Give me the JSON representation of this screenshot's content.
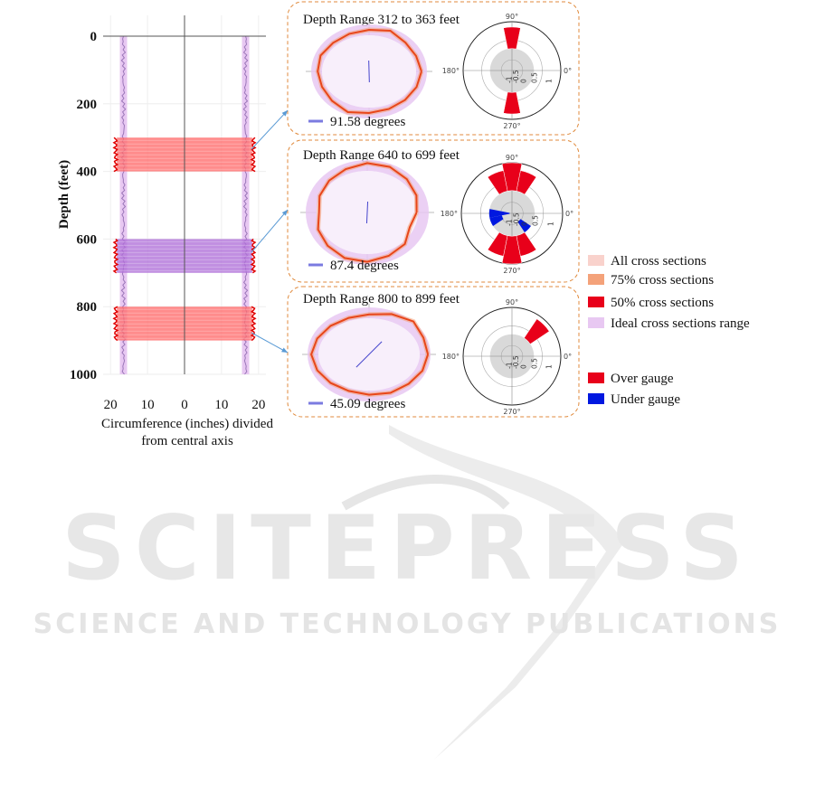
{
  "chart_data": [
    {
      "type": "line",
      "name": "caliper-log",
      "xlabel": "Circumference (inches) divided from central axis",
      "ylabel": "Depth (feet)",
      "xlim": [
        -22,
        22
      ],
      "ylim": [
        0,
        1000
      ],
      "x_ticks": [
        -20,
        -10,
        0,
        10,
        20
      ],
      "x_tick_labels": [
        "20",
        "10",
        "0",
        "10",
        "20"
      ],
      "y_ticks": [
        0,
        200,
        400,
        600,
        800,
        1000
      ],
      "y_tick_labels": [
        "0",
        "200",
        "400",
        "600",
        "800",
        "1000"
      ],
      "grid": true,
      "ideal_radius": 16.5,
      "highlighted_ranges": [
        {
          "start": 300,
          "end": 400,
          "color": "#ff6b6b"
        },
        {
          "start": 600,
          "end": 700,
          "color": "#b06fd8"
        },
        {
          "start": 800,
          "end": 900,
          "color": "#ff6b6b"
        }
      ]
    },
    {
      "type": "polar",
      "title": "Depth Range 312 to 363 feet",
      "angle_label": "91.58 degrees",
      "angle_deg": 91.58,
      "shape_radii": [
        1.0,
        0.97,
        0.98,
        1.06,
        1.0,
        0.98,
        0.97,
        1.0,
        0.98,
        0.97,
        1.0,
        1.06,
        1.0,
        0.98,
        0.97,
        0.98
      ],
      "rose_over": [
        0,
        0,
        0,
        0,
        0.8,
        0,
        0,
        0,
        0,
        0,
        0,
        0,
        0.8,
        0,
        0,
        0
      ],
      "rose_under": [
        0,
        0,
        0,
        0,
        0,
        0,
        0,
        0,
        0,
        0,
        0,
        0,
        0,
        0,
        0,
        0
      ]
    },
    {
      "type": "polar",
      "title": "Depth Range 640 to 699 feet",
      "angle_label": "87.4 degrees",
      "angle_deg": 87.4,
      "shape_radii": [
        0.88,
        0.95,
        1.0,
        1.05,
        1.05,
        1.0,
        0.96,
        0.92,
        0.86,
        0.95,
        1.0,
        1.05,
        1.05,
        1.0,
        0.95,
        0.82
      ],
      "rose_over": [
        0,
        0,
        0,
        0.75,
        1.0,
        0.75,
        0,
        0,
        0,
        0,
        0,
        0.75,
        1.0,
        0.75,
        0,
        0
      ],
      "rose_under": [
        0,
        0,
        0,
        0,
        0,
        0,
        0,
        0,
        0.9,
        0.55,
        0,
        0,
        0,
        0,
        0.55,
        0
      ]
    },
    {
      "type": "polar",
      "title": "Depth Range 800 to 899 feet",
      "angle_label": "45.09 degrees",
      "angle_deg": 45.09,
      "shape_radii": [
        1.05,
        1.05,
        1.12,
        1.05,
        0.96,
        0.95,
        0.97,
        1.0,
        1.03,
        1.0,
        0.97,
        0.95,
        0.97,
        1.0,
        1.0,
        1.03
      ],
      "rose_over": [
        0,
        0,
        0.85,
        0,
        0,
        0,
        0,
        0,
        0,
        0,
        0,
        0,
        0,
        0,
        0,
        0
      ],
      "rose_under": [
        0,
        0,
        0,
        0,
        0,
        0,
        0,
        0,
        0,
        0,
        0,
        0,
        0,
        0,
        0,
        0
      ]
    }
  ],
  "polar_axis": {
    "labels": {
      "top": "90°",
      "left": "180°",
      "right": "0°",
      "bottom": "270°"
    },
    "radial_labels": [
      "-1",
      "-0.5",
      "0",
      "0.5",
      "1"
    ]
  },
  "legend": [
    {
      "label": "All cross sections",
      "color": "#f9d2cc"
    },
    {
      "label": "75% cross sections",
      "color": "#f4a27a"
    },
    {
      "label": "50% cross sections",
      "color": "#e8001a"
    },
    {
      "label": "Ideal cross sections range",
      "color": "#e8c8f2"
    },
    {
      "label": "Over gauge",
      "color": "#e8001a"
    },
    {
      "label": "Under gauge",
      "color": "#0018e0"
    }
  ],
  "watermark": {
    "big": "SCITEPRESS",
    "small": "SCIENCE AND TECHNOLOGY PUBLICATIONS"
  }
}
